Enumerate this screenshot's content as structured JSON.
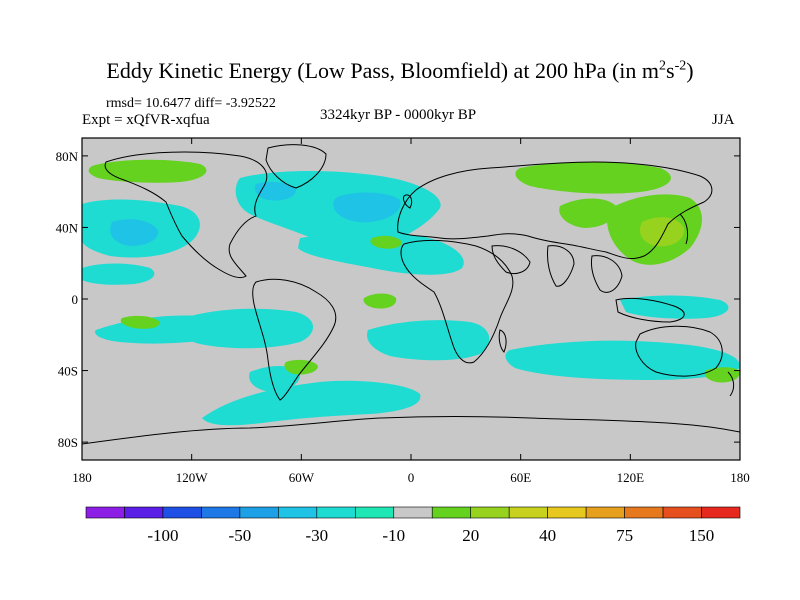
{
  "title": {
    "main": "Eddy Kinetic Energy (Low Pass, Bloomfield) at 200 hPa (in m",
    "sup1": "2",
    "mid": "s",
    "sup2": "-2",
    "end": ")"
  },
  "stats": "rmsd= 10.6477 diff= -3.92522",
  "expt": "Expt = xQfVR-xqfua",
  "period": "3324kyr BP - 0000kyr BP",
  "season": "JJA",
  "map_data": {
    "projection": "cylindrical equidistant",
    "lon_range": [
      -180,
      180
    ],
    "lat_range": [
      -90,
      90
    ],
    "background_color": "#c8c8c8",
    "x_ticks": [
      {
        "value": -180,
        "label": "180"
      },
      {
        "value": -120,
        "label": "120W"
      },
      {
        "value": -60,
        "label": "60W"
      },
      {
        "value": 0,
        "label": "0"
      },
      {
        "value": 60,
        "label": "60E"
      },
      {
        "value": 120,
        "label": "120E"
      },
      {
        "value": 180,
        "label": "180"
      }
    ],
    "y_ticks": [
      {
        "value": 80,
        "label": "80N"
      },
      {
        "value": 40,
        "label": "40N"
      },
      {
        "value": 0,
        "label": "0"
      },
      {
        "value": -40,
        "label": "40S"
      },
      {
        "value": -80,
        "label": "80S"
      }
    ]
  },
  "colorbar": {
    "colors": [
      "#8c1ee6",
      "#5a1ee6",
      "#1e50e6",
      "#1e78e6",
      "#1ea0e6",
      "#1ec3e6",
      "#1edcd2",
      "#1ee6b4",
      "#c8c8c8",
      "#64d21e",
      "#96d21e",
      "#c8d21e",
      "#e6c81e",
      "#e6a01e",
      "#e6781e",
      "#e6501e",
      "#e6281e"
    ],
    "labels": [
      {
        "boundary": 2,
        "text": "-100"
      },
      {
        "boundary": 4,
        "text": "-50"
      },
      {
        "boundary": 6,
        "text": "-30"
      },
      {
        "boundary": 8,
        "text": "-10"
      },
      {
        "boundary": 10,
        "text": "20"
      },
      {
        "boundary": 12,
        "text": "40"
      },
      {
        "boundary": 14,
        "text": "75"
      },
      {
        "boundary": 16,
        "text": "150"
      }
    ]
  }
}
